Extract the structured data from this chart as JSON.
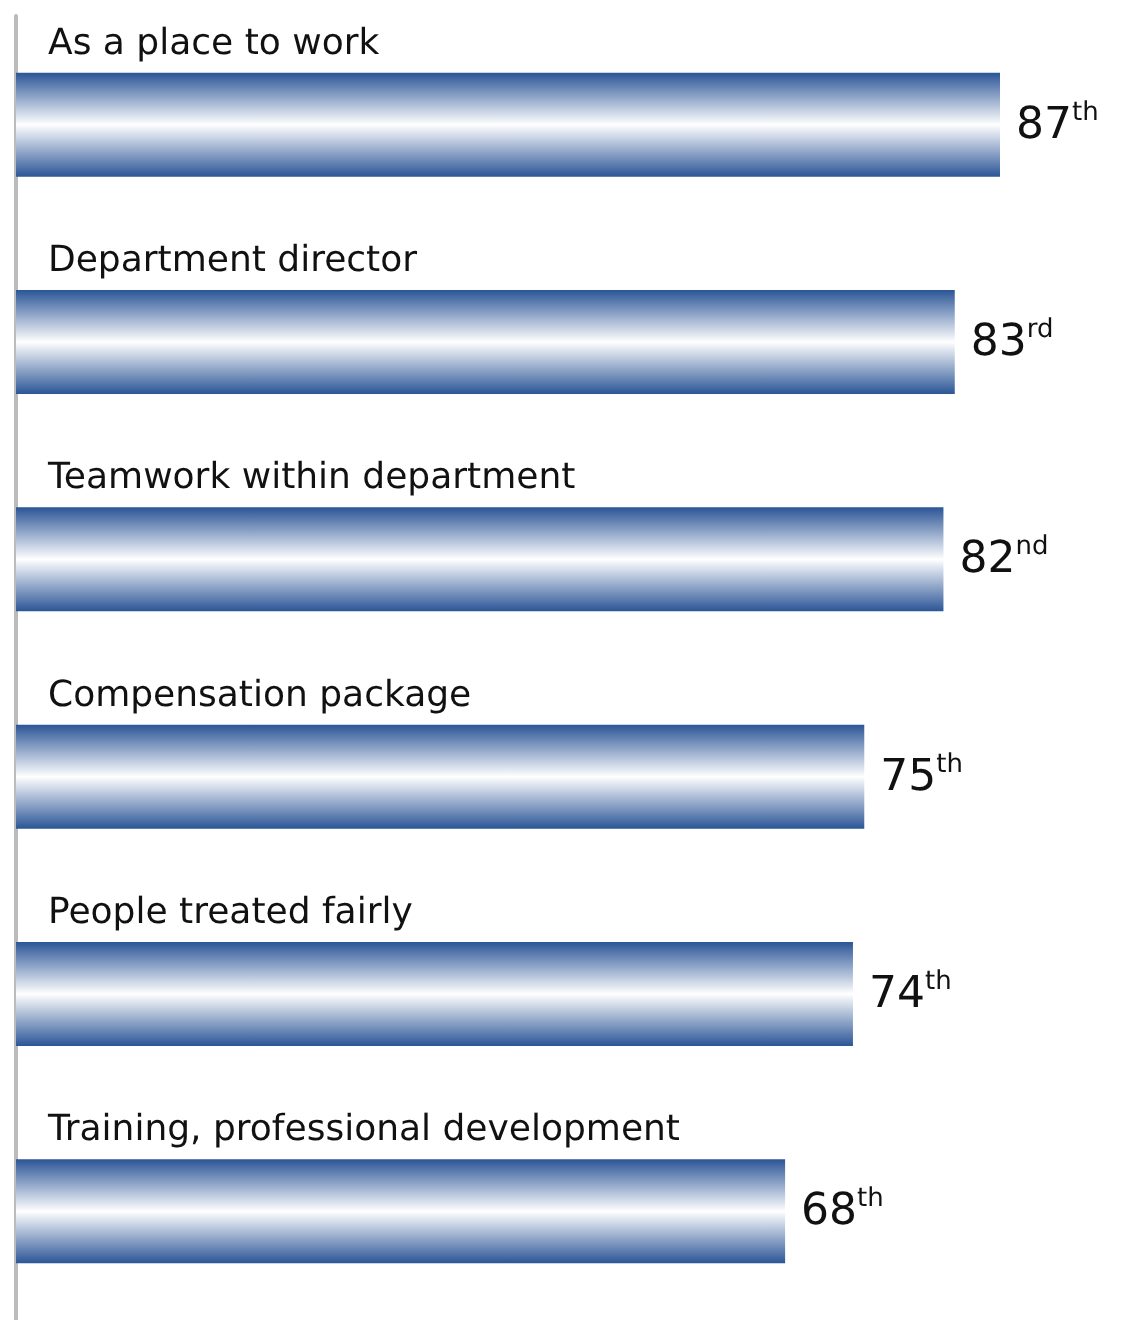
{
  "chart_data": {
    "type": "bar",
    "orientation": "horizontal",
    "categories": [
      "As a place to work",
      "Department director",
      "Teamwork within department",
      "Compensation package",
      "People treated fairly",
      "Training, professional development"
    ],
    "values": [
      87,
      83,
      82,
      75,
      74,
      68
    ],
    "value_labels": [
      "87$^{th}$",
      "83$^{rd}$",
      "82$^{nd}$",
      "75$^{th}$",
      "74$^{th}$",
      "68$^{th}$"
    ],
    "color": "#2b5596",
    "tick_labels": "y"
  }
}
